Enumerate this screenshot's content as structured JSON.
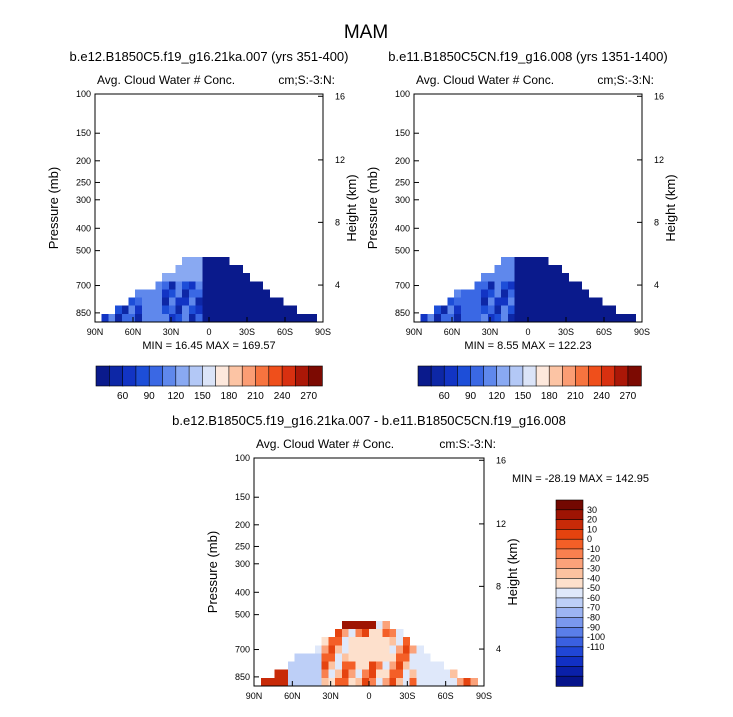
{
  "page": {
    "title": "MAM",
    "diff_title": "b.e12.B1850C5.f19_g16.21ka.007 - b.e11.B1850C5CN.f19_g16.008"
  },
  "colors": {
    "blue_scale": [
      "#0a1a8c",
      "#0d27a6",
      "#1234c4",
      "#1d4ed8",
      "#3a68e4",
      "#5f88ec",
      "#89a9f2",
      "#b3c8f6",
      "#dbe4f8",
      "#fde8dc",
      "#fcc4a4",
      "#fb9d74",
      "#f7743f",
      "#ef4f1b",
      "#d83010",
      "#ab1707",
      "#7c0a02"
    ],
    "diff_scale": [
      "#06148a",
      "#0a20a8",
      "#1130c4",
      "#2046d6",
      "#3a60e0",
      "#5a7ee8",
      "#7a98ee",
      "#9cb4f3",
      "#bdcff7",
      "#dfe8fa",
      "#fde0cc",
      "#fcc2a0",
      "#fba27a",
      "#f9804f",
      "#f45f27",
      "#e5430f",
      "#c82a08",
      "#9e1403",
      "#730801"
    ]
  },
  "chart_data": [
    {
      "type": "heatmap",
      "name": "panel-1",
      "title": "b.e12.B1850C5.f19_g16.21ka.007 (yrs 351-400)",
      "left_label": "Avg. Cloud Water # Conc.",
      "right_label": "cm;S:-3:N:",
      "ylabel": "Pressure (mb)",
      "ylabel_right": "Height (km)",
      "x_ticks": [
        "90N",
        "60N",
        "30N",
        "0",
        "30S",
        "60S",
        "90S"
      ],
      "y_ticks": [
        "100",
        "150",
        "200",
        "250",
        "300",
        "400",
        "500",
        "700",
        "850"
      ],
      "y_ticks_right": [
        "16",
        "12",
        "8",
        "4"
      ],
      "min_max": "MIN =  16.45  MAX = 169.57",
      "cbar_labels": [
        "60",
        "90",
        "120",
        "150",
        "180",
        "210",
        "240",
        "270"
      ]
    },
    {
      "type": "heatmap",
      "name": "panel-2",
      "title": "b.e11.B1850C5CN.f19_g16.008 (yrs 1351-1400)",
      "left_label": "Avg. Cloud Water # Conc.",
      "right_label": "cm;S:-3:N:",
      "ylabel": "Pressure (mb)",
      "ylabel_right": "Height (km)",
      "x_ticks": [
        "90N",
        "60N",
        "30N",
        "0",
        "30S",
        "60S",
        "90S"
      ],
      "y_ticks": [
        "100",
        "150",
        "200",
        "250",
        "300",
        "400",
        "500",
        "700",
        "850"
      ],
      "y_ticks_right": [
        "16",
        "12",
        "8",
        "4"
      ],
      "min_max": "MIN =   8.55  MAX = 122.23",
      "cbar_labels": [
        "60",
        "90",
        "120",
        "150",
        "180",
        "210",
        "240",
        "270"
      ]
    },
    {
      "type": "heatmap",
      "name": "panel-3",
      "title": "b.e12.B1850C5.f19_g16.21ka.007 - b.e11.B1850C5CN.f19_g16.008",
      "left_label": "Avg. Cloud Water # Conc.",
      "right_label": "cm:S:-3:N:",
      "ylabel": "Pressure (mb)",
      "ylabel_right": "Height (km)",
      "x_ticks": [
        "90N",
        "60N",
        "30N",
        "0",
        "30S",
        "60S",
        "90S"
      ],
      "y_ticks": [
        "100",
        "150",
        "200",
        "250",
        "300",
        "400",
        "500",
        "700",
        "850"
      ],
      "y_ticks_right": [
        "16",
        "12",
        "8",
        "4"
      ],
      "min_max": "MIN = -28.19  MAX = 142.95",
      "cbar_labels": [
        "30",
        "20",
        "10",
        "0",
        "-10",
        "-20",
        "-30",
        "-40",
        "-50",
        "-60",
        "-70",
        "-80",
        "-90",
        "-100",
        "-110"
      ]
    }
  ]
}
